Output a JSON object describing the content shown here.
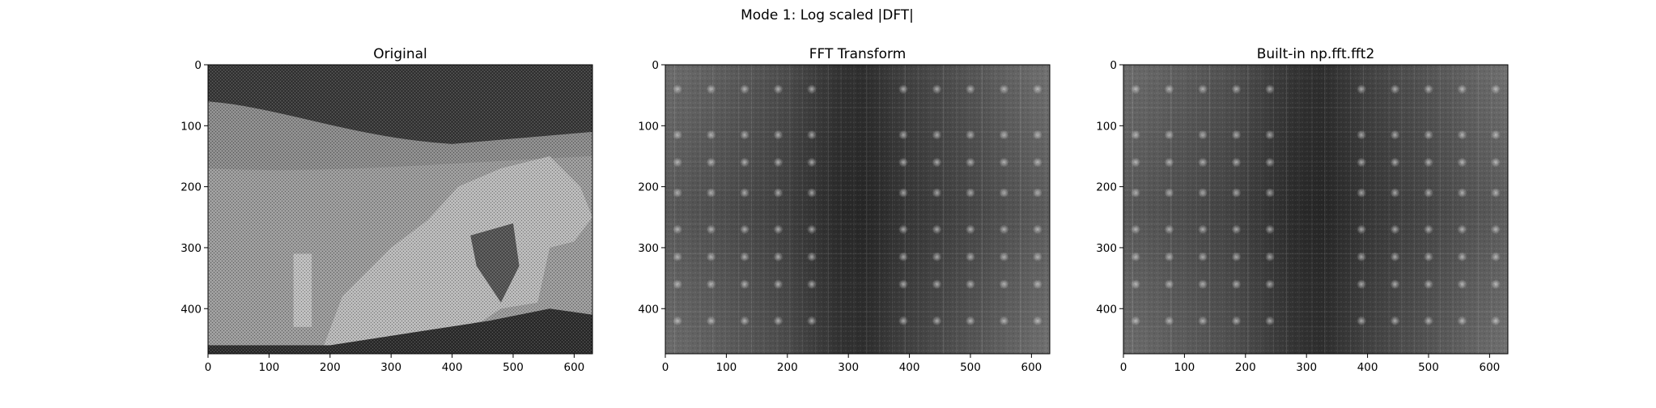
{
  "figure": {
    "title": "Mode 1: Log scaled |DFT|"
  },
  "chart_data": [
    {
      "type": "heatmap",
      "title": "Original",
      "content": "grayscale moon rock photograph",
      "xlim": [
        0,
        630
      ],
      "ylim": [
        474,
        0
      ],
      "xticks": [
        "0",
        "100",
        "200",
        "300",
        "400",
        "500",
        "600"
      ],
      "yticks": [
        "0",
        "100",
        "200",
        "300",
        "400"
      ],
      "colormap": "gray"
    },
    {
      "type": "heatmap",
      "title": "FFT Transform",
      "content": "log-scaled DFT magnitude spectrum",
      "xlim": [
        0,
        630
      ],
      "ylim": [
        474,
        0
      ],
      "xticks": [
        "0",
        "100",
        "200",
        "300",
        "400",
        "500",
        "600"
      ],
      "yticks": [
        "0",
        "100",
        "200",
        "300",
        "400"
      ],
      "colormap": "gray"
    },
    {
      "type": "heatmap",
      "title": "Built-in np.fft.fft2",
      "content": "log-scaled DFT magnitude spectrum",
      "xlim": [
        0,
        630
      ],
      "ylim": [
        474,
        0
      ],
      "xticks": [
        "0",
        "100",
        "200",
        "300",
        "400",
        "500",
        "600"
      ],
      "yticks": [
        "0",
        "100",
        "200",
        "300",
        "400"
      ],
      "colormap": "gray"
    }
  ]
}
